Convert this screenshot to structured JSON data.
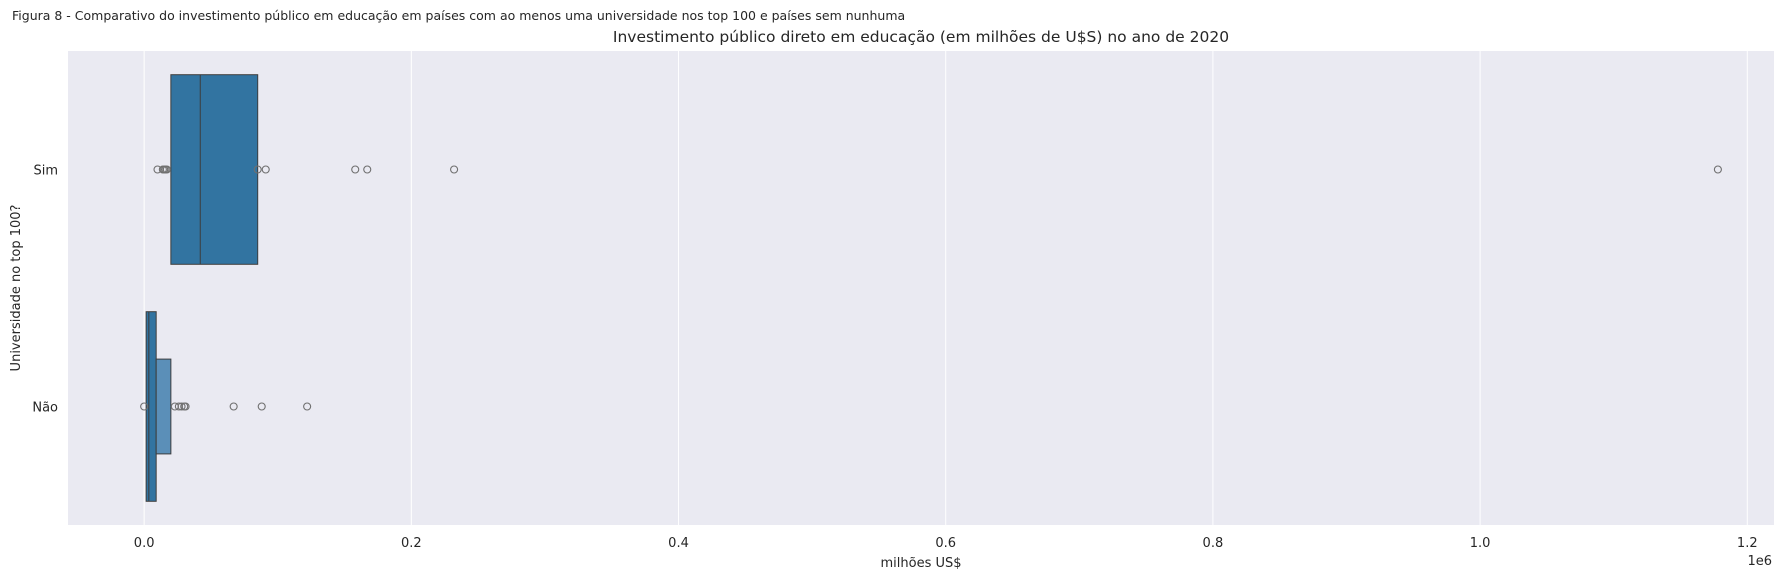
{
  "caption": "Figura 8 - Comparativo do investimento público em educação em países com ao menos uma universidade nos top 100 e países sem nunhuma",
  "chart_data": {
    "type": "boxplot",
    "orientation": "horizontal",
    "title": "Investimento público direto em educação (em milhões de U$S) no ano de 2020",
    "xlabel": "milhões US$",
    "ylabel": "Universidade no top 100?",
    "x_offset_label": "1e6",
    "xlim": [
      -57000,
      1220000
    ],
    "xticks": [
      0,
      200000,
      400000,
      600000,
      800000,
      1000000,
      1200000
    ],
    "xtick_labels": [
      "0.0",
      "0.2",
      "0.4",
      "0.6",
      "0.8",
      "1.0",
      "1.2"
    ],
    "grid": true,
    "colors": {
      "background": "#eaeaf2",
      "grid": "#ffffff",
      "box": "#3274a1",
      "box_light": "#5b8fb8",
      "edge": "#3d3d3d",
      "flier": "#707070"
    },
    "categories": [
      "Sim",
      "Não"
    ],
    "boxes": [
      {
        "category": "Sim",
        "q1": 20000,
        "median": 42000,
        "q3": 85000,
        "outliers": [
          10000,
          14000,
          15000,
          16000,
          17000,
          85000,
          91000,
          158000,
          167000,
          232000,
          1178000
        ]
      },
      {
        "category": "Não",
        "letter_value_levels": [
          [
            1500,
            9000
          ],
          [
            9000,
            20000
          ]
        ],
        "median": 3500,
        "outliers": [
          0,
          23000,
          26000,
          28000,
          30000,
          31000,
          67000,
          88000,
          122000
        ]
      }
    ]
  }
}
